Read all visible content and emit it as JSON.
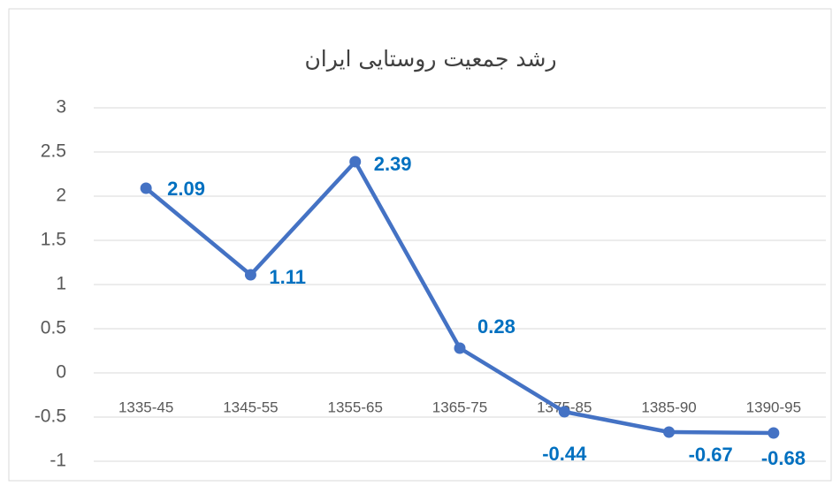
{
  "chart_data": {
    "type": "line",
    "title": "رشد جمعیت روستایی ایران",
    "categories": [
      "1335-45",
      "1345-55",
      "1355-65",
      "1365-75",
      "1375-85",
      "1385-90",
      "1390-95"
    ],
    "series": [
      {
        "name": "رشد جمعیت روستایی ایران",
        "color": "#4472c4",
        "values": [
          2.09,
          1.11,
          2.39,
          0.28,
          -0.44,
          -0.67,
          -0.68
        ]
      }
    ],
    "ylim": [
      -1,
      3
    ],
    "yticks": [
      -1,
      -0.5,
      0,
      0.5,
      1,
      1.5,
      2,
      2.5,
      3
    ],
    "grid": true
  }
}
